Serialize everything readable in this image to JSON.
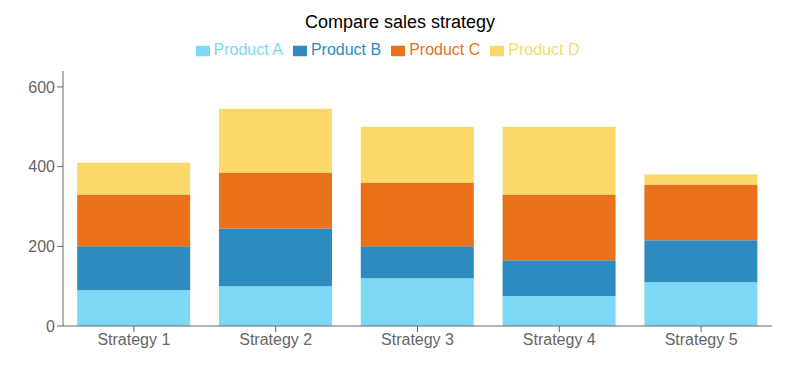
{
  "chart_data": {
    "type": "bar",
    "title": "Compare sales strategy",
    "categories": [
      "Strategy 1",
      "Strategy 2",
      "Strategy 3",
      "Strategy 4",
      "Strategy 5"
    ],
    "series": [
      {
        "name": "Product A",
        "color": "#7DD8F5",
        "values": [
          90,
          100,
          120,
          75,
          110
        ]
      },
      {
        "name": "Product B",
        "color": "#2E8BC0",
        "values": [
          110,
          145,
          80,
          90,
          105
        ]
      },
      {
        "name": "Product C",
        "color": "#E8711A",
        "values": [
          130,
          140,
          160,
          165,
          140
        ]
      },
      {
        "name": "Product D",
        "color": "#FAD96A",
        "values": [
          80,
          160,
          140,
          170,
          25
        ]
      }
    ],
    "ylim": [
      0,
      640
    ],
    "yticks": [
      0,
      200,
      400,
      600
    ],
    "stacked": true,
    "legend": "top",
    "grid": false
  }
}
